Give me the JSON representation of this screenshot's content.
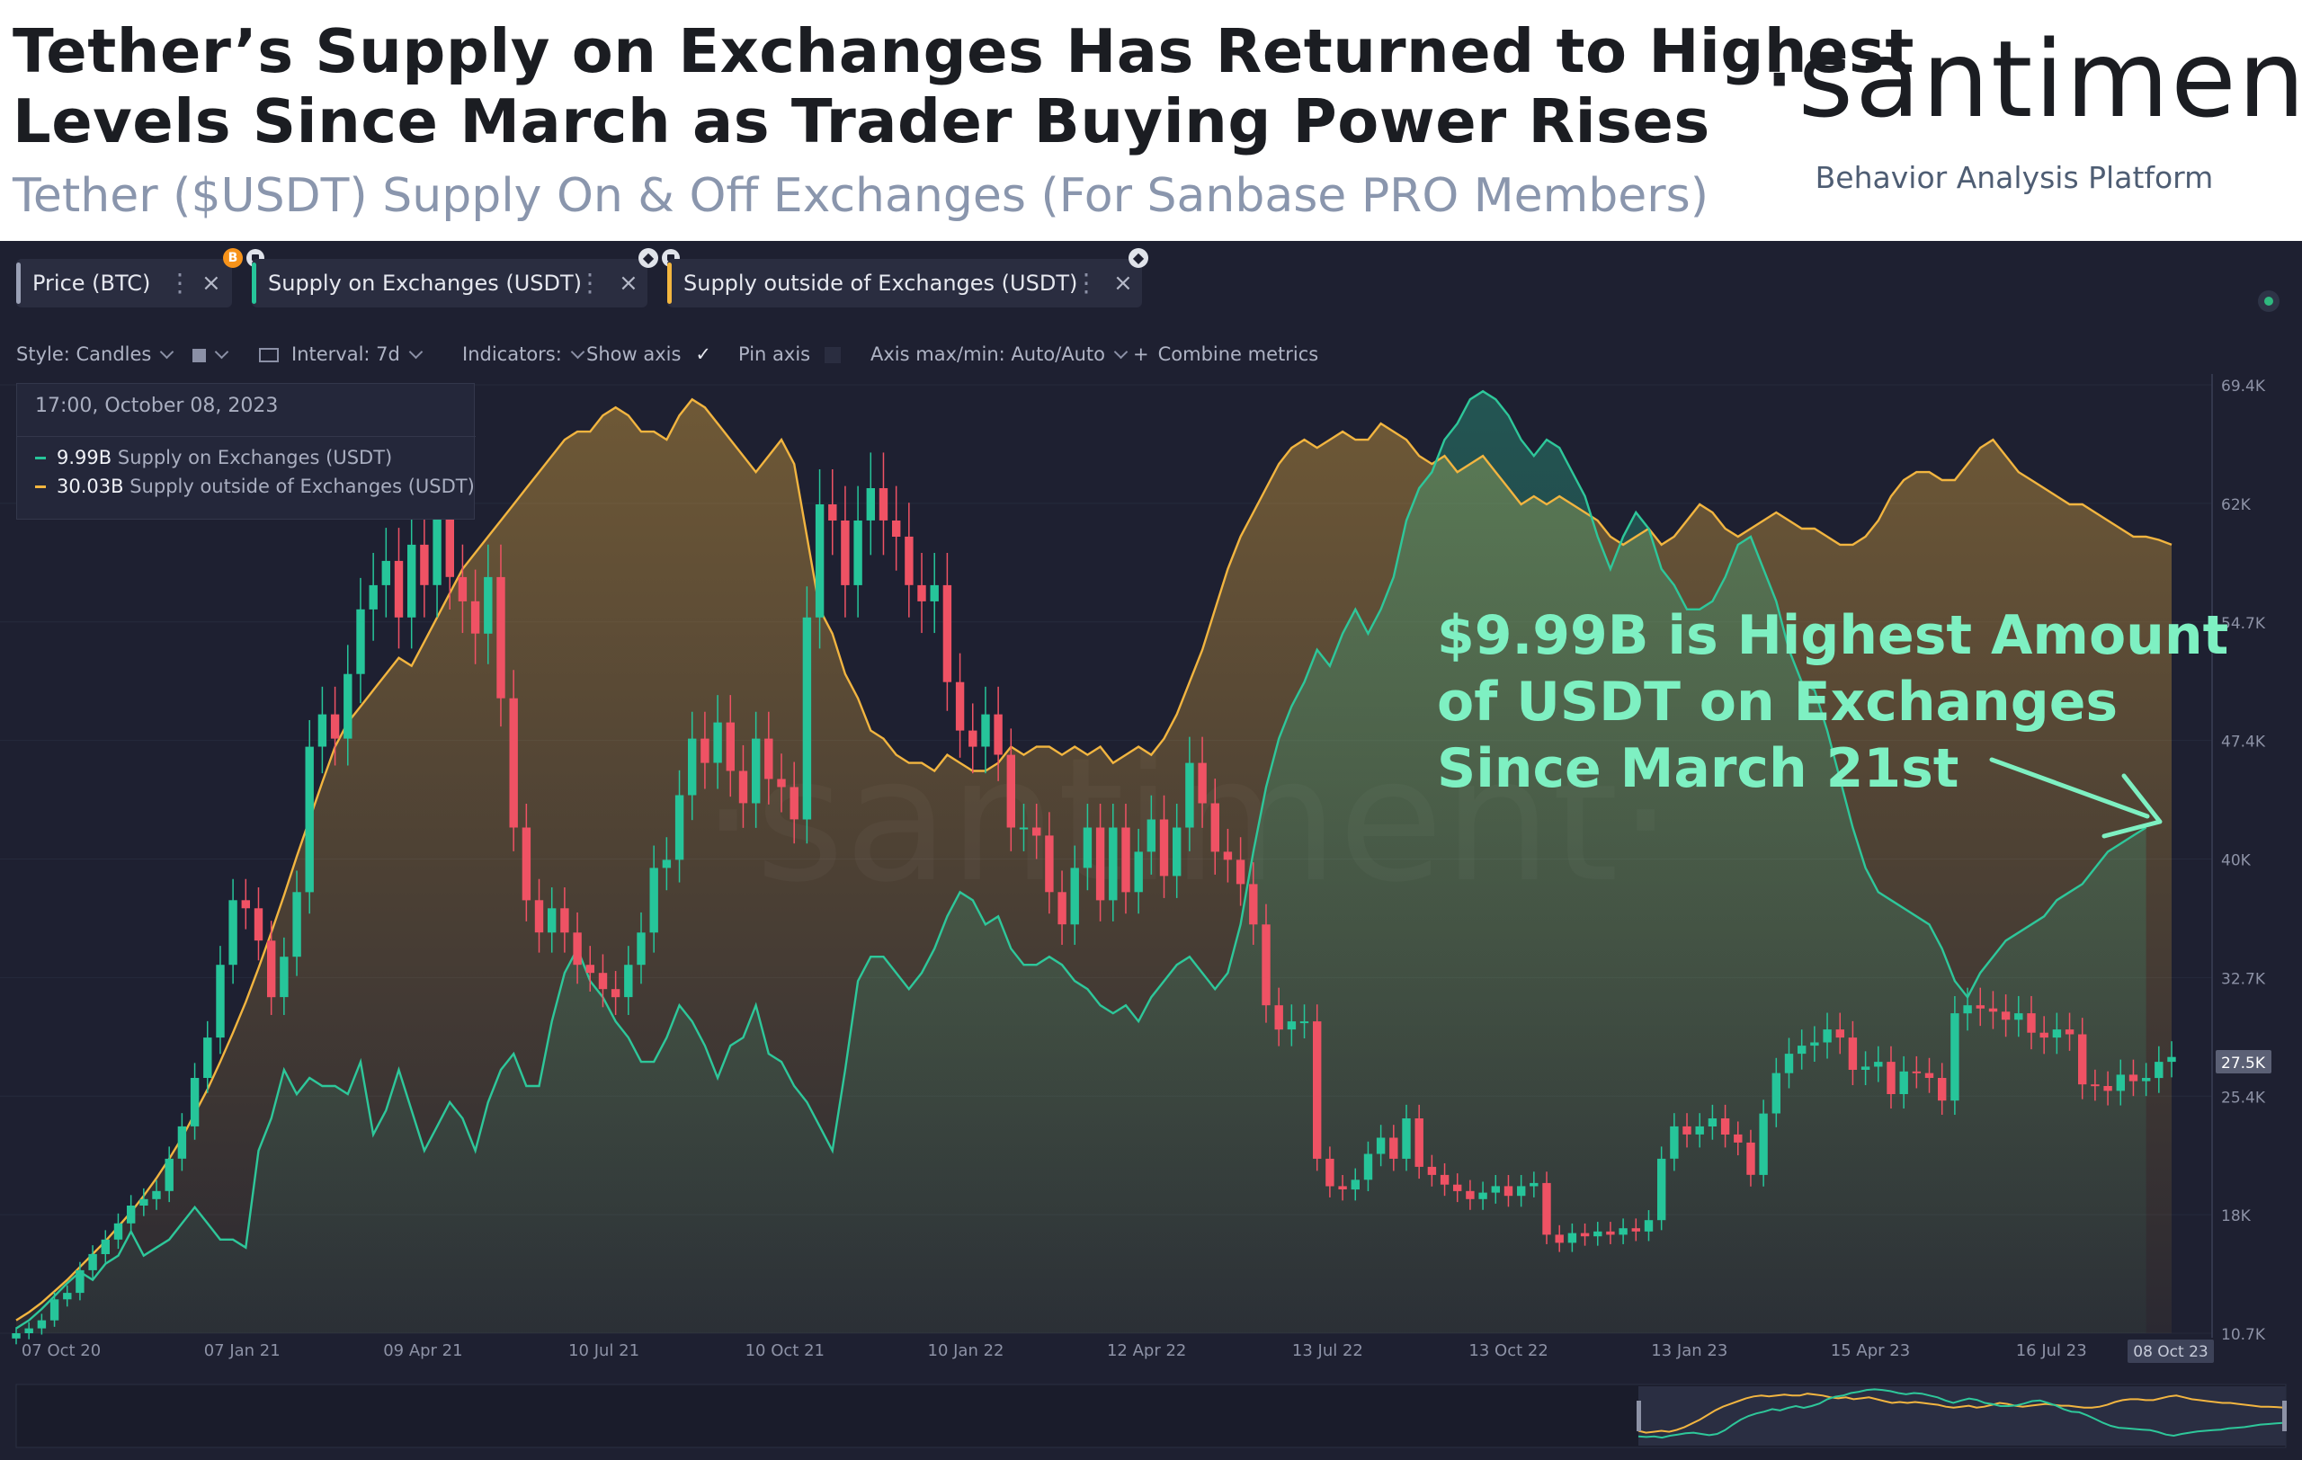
{
  "header": {
    "title_line1": "Tether’s Supply on Exchanges Has Returned to Highest",
    "title_line2": "Levels Since March as Trader Buying Power Rises",
    "subtitle": "Tether ($USDT) Supply On & Off Exchanges (For Sanbase PRO Members)",
    "logo": "·santiment·",
    "tagline": "Behavior Analysis Platform"
  },
  "metric_chips": [
    {
      "label": "Price (BTC)",
      "color": "#9aa0b5",
      "badge": "B",
      "badge_color": "#f7931a"
    },
    {
      "label": "Supply on Exchanges (USDT)",
      "color": "#26c59a",
      "badge": "eth",
      "badge_color": "#e0e3ea"
    },
    {
      "label": "Supply outside of Exchanges (USDT)",
      "color": "#f3b63f",
      "badge": "eth",
      "badge_color": "#e0e3ea"
    }
  ],
  "toolbar": {
    "style_label": "Style: Candles",
    "interval_label": "Interval: 7d",
    "indicators_label": "Indicators:",
    "show_axis_label": "Show axis",
    "pin_axis_label": "Pin axis",
    "axis_minmax_label": "Axis max/min: Auto/Auto",
    "combine_label": "Combine metrics"
  },
  "tooltip": {
    "date": "17:00, October 08, 2023",
    "rows": [
      {
        "value": "9.99B",
        "name": "Supply on Exchanges (USDT)",
        "color": "#26c59a"
      },
      {
        "value": "30.03B",
        "name": "Supply outside of Exchanges (USDT)",
        "color": "#f3b63f"
      }
    ]
  },
  "annotation": {
    "lines": [
      "$9.99B is Highest Amount",
      "of USDT on Exchanges",
      "Since March 21st"
    ],
    "color": "#7ef0c2"
  },
  "watermark": "·santiment·",
  "chart_data": {
    "type": "line",
    "x_ticks": [
      "07 Oct 20",
      "07 Jan 21",
      "09 Apr 21",
      "10 Jul 21",
      "10 Oct 21",
      "10 Jan 22",
      "12 Apr 22",
      "13 Jul 22",
      "13 Oct 22",
      "13 Jan 23",
      "15 Apr 23",
      "16 Jul 23"
    ],
    "x_end_label": "08 Oct 23",
    "y_right_ticks": [
      "69.4K",
      "62K",
      "54.7K",
      "47.4K",
      "40K",
      "32.7K",
      "25.4K",
      "18K",
      "10.7K"
    ],
    "y_right_range": [
      10.7,
      69.4
    ],
    "current_price_label": "27.5K",
    "current_price": 27.5,
    "colors": {
      "price_up": "#26c59a",
      "price_down": "#ef5264",
      "on_exchanges": "#2ec79a",
      "outside_exchanges": "#f2b540"
    },
    "series": [
      {
        "name": "Price (BTC)",
        "unit": "USD thousands (weekly close)",
        "values": [
          10.7,
          11.0,
          11.5,
          12.8,
          13.2,
          14.6,
          15.6,
          16.5,
          17.5,
          18.6,
          19.0,
          19.5,
          21.5,
          23.5,
          26.5,
          29.0,
          33.5,
          37.5,
          37.0,
          35.0,
          31.5,
          34.0,
          38.0,
          47.0,
          49.0,
          47.5,
          51.5,
          55.5,
          57.0,
          58.5,
          55.0,
          59.5,
          57.0,
          63.5,
          57.5,
          56.0,
          54.0,
          57.5,
          50.0,
          42.0,
          37.5,
          35.5,
          37.0,
          35.5,
          33.5,
          33.0,
          32.0,
          31.5,
          33.5,
          35.5,
          39.5,
          40.0,
          44.0,
          47.5,
          46.0,
          48.5,
          45.5,
          43.5,
          47.5,
          45.0,
          44.5,
          42.5,
          55.0,
          62.0,
          61.0,
          57.0,
          61.0,
          63.0,
          61.0,
          60.0,
          57.0,
          56.0,
          57.0,
          51.0,
          48.0,
          47.0,
          49.0,
          46.5,
          42.0,
          42.0,
          41.5,
          38.0,
          36.0,
          39.5,
          42.0,
          37.5,
          42.0,
          38.0,
          40.5,
          42.5,
          39.0,
          42.0,
          46.0,
          43.5,
          40.5,
          40.0,
          38.5,
          36.0,
          31.0,
          29.5,
          30.0,
          30.0,
          21.5,
          19.8,
          19.6,
          20.2,
          21.8,
          22.8,
          21.5,
          24.0,
          21.0,
          20.5,
          19.9,
          19.5,
          19.0,
          19.4,
          19.8,
          19.2,
          19.8,
          20.0,
          16.8,
          16.3,
          16.9,
          16.7,
          17.0,
          16.8,
          17.2,
          17.0,
          17.7,
          21.5,
          23.5,
          23.0,
          23.5,
          24.0,
          23.0,
          22.5,
          20.5,
          24.3,
          26.8,
          28.0,
          28.5,
          28.7,
          29.5,
          29.0,
          27.0,
          27.2,
          27.5,
          25.5,
          26.9,
          26.8,
          26.5,
          25.1,
          30.5,
          31.0,
          30.8,
          30.6,
          30.1,
          30.5,
          29.3,
          29.0,
          29.5,
          29.2,
          26.1,
          26.0,
          25.7,
          26.7,
          26.3,
          26.5,
          27.5,
          27.8
        ]
      },
      {
        "name": "Supply on Exchanges (USDT)",
        "unit": "read on shared axis",
        "values": [
          11.0,
          11.5,
          12.2,
          13.0,
          13.8,
          14.5,
          14.0,
          15.0,
          15.5,
          17.0,
          15.5,
          16.0,
          16.5,
          17.5,
          18.5,
          17.5,
          16.5,
          16.5,
          16.0,
          22.0,
          24.0,
          27.0,
          25.5,
          26.5,
          26.0,
          26.0,
          25.5,
          27.5,
          23.0,
          24.5,
          27.0,
          24.5,
          22.0,
          23.5,
          25.0,
          24.0,
          22.0,
          25.0,
          27.0,
          28.0,
          26.0,
          26.0,
          30.0,
          33.0,
          34.5,
          32.5,
          31.5,
          30.0,
          29.0,
          27.5,
          27.5,
          29.0,
          31.0,
          30.0,
          28.5,
          26.5,
          28.5,
          29.0,
          31.0,
          28.0,
          27.5,
          26.0,
          25.0,
          23.5,
          22.0,
          27.0,
          32.5,
          34.0,
          34.0,
          33.0,
          32.0,
          33.0,
          34.5,
          36.5,
          38.0,
          37.5,
          36.0,
          36.5,
          34.5,
          33.5,
          33.5,
          34.0,
          33.5,
          32.5,
          32.0,
          31.0,
          30.5,
          31.0,
          30.0,
          31.5,
          32.5,
          33.5,
          34.0,
          33.0,
          32.0,
          33.0,
          36.0,
          40.5,
          44.5,
          47.5,
          49.5,
          51.0,
          53.0,
          52.0,
          54.0,
          55.5,
          54.0,
          55.5,
          57.5,
          61.0,
          63.0,
          64.0,
          66.0,
          67.0,
          68.5,
          69.0,
          68.5,
          67.5,
          66.0,
          65.0,
          66.0,
          65.5,
          64.0,
          62.5,
          60.0,
          58.0,
          60.0,
          61.5,
          60.5,
          58.0,
          57.0,
          55.5,
          55.5,
          56.0,
          57.5,
          59.5,
          60.0,
          58.0,
          56.0,
          53.0,
          51.0,
          50.5,
          48.0,
          45.0,
          42.0,
          39.5,
          38.0,
          37.5,
          37.0,
          36.5,
          36.0,
          34.5,
          32.5,
          31.5,
          33.0,
          34.0,
          35.0,
          35.5,
          36.0,
          36.5,
          37.5,
          38.0,
          38.5,
          39.5,
          40.5,
          41.0,
          41.5,
          42.0
        ]
      },
      {
        "name": "Supply outside of Exchanges (USDT)",
        "unit": "read on shared axis",
        "values": [
          11.5,
          12.0,
          12.6,
          13.3,
          14.0,
          14.8,
          15.6,
          16.4,
          17.3,
          18.2,
          19.2,
          20.3,
          21.5,
          22.8,
          24.3,
          25.8,
          27.5,
          29.3,
          31.2,
          33.3,
          35.5,
          37.8,
          40.2,
          42.5,
          44.8,
          47.0,
          48.5,
          49.5,
          50.5,
          51.5,
          52.5,
          52.0,
          53.5,
          55.0,
          56.5,
          58.0,
          59.0,
          60.0,
          61.0,
          62.0,
          63.0,
          64.0,
          65.0,
          66.0,
          66.5,
          66.5,
          67.5,
          68.0,
          67.5,
          66.5,
          66.5,
          66.0,
          67.5,
          68.5,
          68.0,
          67.0,
          66.0,
          65.0,
          64.0,
          65.0,
          66.0,
          64.5,
          60.0,
          55.5,
          54.0,
          51.5,
          50.0,
          48.0,
          47.5,
          46.5,
          46.0,
          46.0,
          45.5,
          46.5,
          46.0,
          45.5,
          45.5,
          46.0,
          47.0,
          46.5,
          47.0,
          47.0,
          46.5,
          47.0,
          46.5,
          47.0,
          46.0,
          46.5,
          47.0,
          46.5,
          47.5,
          49.0,
          51.0,
          53.0,
          55.5,
          58.0,
          60.0,
          61.5,
          63.0,
          64.5,
          65.5,
          66.0,
          65.5,
          66.0,
          66.5,
          66.0,
          66.0,
          67.0,
          66.5,
          66.0,
          65.0,
          64.5,
          65.0,
          64.0,
          64.5,
          65.0,
          64.0,
          63.0,
          62.0,
          62.5,
          62.0,
          62.5,
          62.0,
          61.5,
          61.0,
          60.0,
          59.5,
          60.0,
          60.5,
          59.5,
          60.0,
          61.0,
          62.0,
          61.5,
          60.5,
          60.0,
          60.5,
          61.0,
          61.5,
          61.0,
          60.5,
          60.5,
          60.0,
          59.5,
          59.5,
          60.0,
          61.0,
          62.5,
          63.5,
          64.0,
          64.0,
          63.5,
          63.5,
          64.5,
          65.5,
          66.0,
          65.0,
          64.0,
          63.5,
          63.0,
          62.5,
          62.0,
          62.0,
          61.5,
          61.0,
          60.5,
          60.0,
          60.0,
          59.8,
          59.5
        ]
      }
    ]
  }
}
